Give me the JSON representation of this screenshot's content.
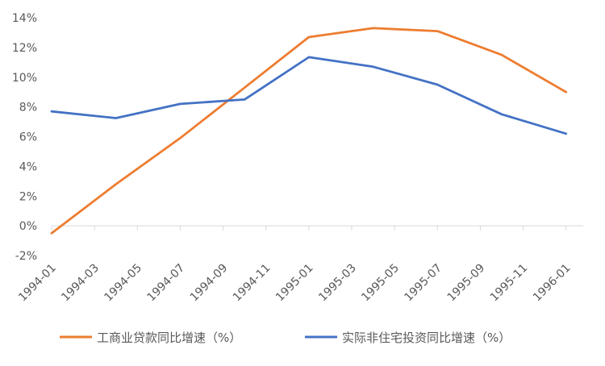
{
  "chart_data": {
    "type": "line",
    "title": "",
    "xlabel": "",
    "ylabel": "",
    "ylim": [
      -2,
      14
    ],
    "ytick_labels": [
      "14%",
      "12%",
      "10%",
      "8%",
      "6%",
      "4%",
      "2%",
      "0%",
      "-2%"
    ],
    "ytick_values": [
      14,
      12,
      10,
      8,
      6,
      4,
      2,
      0,
      -2
    ],
    "x_tick_labels": [
      "1994-01",
      "1994-03",
      "1994-05",
      "1994-07",
      "1994-09",
      "1994-11",
      "1995-01",
      "1995-03",
      "1995-05",
      "1995-07",
      "1995-09",
      "1995-11",
      "1996-01"
    ],
    "x_tick_values": [
      0,
      2,
      4,
      6,
      8,
      10,
      12,
      14,
      16,
      18,
      20,
      22,
      24
    ],
    "grid": false,
    "legend_position": "bottom",
    "series": [
      {
        "name": "工商业贷款同比增速（%）",
        "color": "#ED7D31",
        "x": [
          0,
          3,
          6,
          9,
          12,
          15,
          18,
          21,
          24
        ],
        "values": [
          -0.5,
          2.8,
          5.9,
          9.3,
          12.7,
          13.3,
          13.1,
          11.5,
          9.0
        ]
      },
      {
        "name": "实际非住宅投资同比增速（%）",
        "color": "#4472C4",
        "x": [
          0,
          3,
          6,
          9,
          12,
          15,
          18,
          21,
          24
        ],
        "values": [
          7.7,
          7.25,
          8.2,
          8.5,
          11.35,
          10.7,
          9.5,
          7.5,
          6.2
        ]
      }
    ]
  }
}
